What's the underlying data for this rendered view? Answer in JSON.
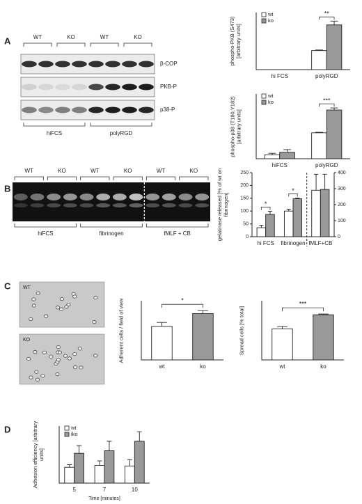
{
  "panel_labels": [
    "A",
    "B",
    "C",
    "D"
  ],
  "blot_a": {
    "lanes": [
      "WT",
      "KO",
      "WT",
      "KO"
    ],
    "rows": [
      "β-COP",
      "PKB-P",
      "p38-P"
    ],
    "groups": [
      "hiFCS",
      "polyRGD"
    ]
  },
  "gel_b": {
    "lanes": [
      "WT",
      "KO",
      "WT",
      "KO",
      "WT",
      "KO"
    ],
    "groups": [
      "hiFCS",
      "fibrinogen",
      "fMLF + CB"
    ]
  },
  "micrographs_c": [
    "WT",
    "KO"
  ],
  "chart_data": [
    {
      "type": "bar",
      "y_label": "phospho-PKB (S473) [arbitrary units]",
      "categories": [
        "hi FCS",
        "polyRGD"
      ],
      "series": [
        {
          "name": "wt",
          "color": "#ffffff",
          "values": [
            0,
            100
          ],
          "errors": [
            0,
            3
          ]
        },
        {
          "name": "ko",
          "color": "#999999",
          "values": [
            0,
            235
          ],
          "errors": [
            0,
            20
          ]
        }
      ],
      "ylim": [
        0,
        300
      ],
      "annotations": [
        null,
        "**"
      ],
      "legend": "upper left"
    },
    {
      "type": "bar",
      "y_label": "phospho-p38 (T180,Y182) [arbitrary units]",
      "categories": [
        "hiFCS",
        "polyRGD"
      ],
      "series": [
        {
          "name": "wt",
          "color": "#ffffff",
          "values": [
            15,
            100
          ],
          "errors": [
            6,
            2
          ]
        },
        {
          "name": "ko",
          "color": "#999999",
          "values": [
            25,
            188
          ],
          "errors": [
            10,
            8
          ]
        }
      ],
      "ylim": [
        0,
        250
      ],
      "annotations": [
        null,
        "***"
      ],
      "legend": "upper left"
    },
    {
      "type": "bar",
      "y_label": "gelatinase released [% of wt on fibrinogen]",
      "categories": [
        "hi FCS",
        "fibrinogen",
        "fMLF+CB"
      ],
      "series": [
        {
          "color": "#ffffff",
          "values": [
            35,
            100,
            null
          ],
          "errors": [
            10,
            7,
            null
          ]
        },
        {
          "color": "#999999",
          "values": [
            87,
            148,
            null
          ],
          "errors": [
            12,
            3,
            null
          ]
        },
        {
          "color": "#ffffff",
          "axis": "y2",
          "values": [
            null,
            null,
            290
          ],
          "errors": [
            null,
            null,
            100
          ]
        },
        {
          "color": "#999999",
          "axis": "y2",
          "values": [
            null,
            null,
            295
          ],
          "errors": [
            null,
            null,
            95
          ]
        }
      ],
      "ylim": [
        0,
        250
      ],
      "yticks": [
        0,
        50,
        100,
        150,
        200,
        250
      ],
      "y2lim": [
        0,
        400
      ],
      "y2ticks": [
        0,
        100,
        200,
        300,
        400
      ],
      "annotations": [
        "*",
        "*",
        null
      ]
    },
    {
      "type": "bar",
      "y_label": "Adherent cells / field of view",
      "categories": [
        "wt",
        "ko"
      ],
      "series": [
        {
          "colors": [
            "#ffffff",
            "#999999"
          ],
          "values": [
            170,
            235
          ],
          "errors": [
            20,
            15
          ]
        }
      ],
      "ylim": [
        0,
        300
      ],
      "annotation": "*"
    },
    {
      "type": "bar",
      "y_label": "Spread cells [% total]",
      "categories": [
        "wt",
        "ko"
      ],
      "series": [
        {
          "colors": [
            "#ffffff",
            "#999999"
          ],
          "values": [
            42,
            61
          ],
          "errors": [
            3,
            1
          ]
        }
      ],
      "ylim": [
        0,
        80
      ],
      "annotation": "***"
    },
    {
      "type": "bar",
      "y_label": "Adhesion efficiency [arbitrary units]",
      "x_label": "Time [minutes]",
      "categories": [
        "5",
        "7",
        "10"
      ],
      "series": [
        {
          "name": "wt",
          "color": "#ffffff",
          "values": [
            0.025,
            0.028,
            0.027
          ],
          "errors": [
            0.004,
            0.007,
            0.01
          ]
        },
        {
          "name": "iko",
          "color": "#999999",
          "values": [
            0.047,
            0.051,
            0.066
          ],
          "errors": [
            0.012,
            0.015,
            0.015
          ]
        }
      ],
      "ylim": [
        0,
        0.09
      ],
      "legend": "upper left"
    }
  ]
}
